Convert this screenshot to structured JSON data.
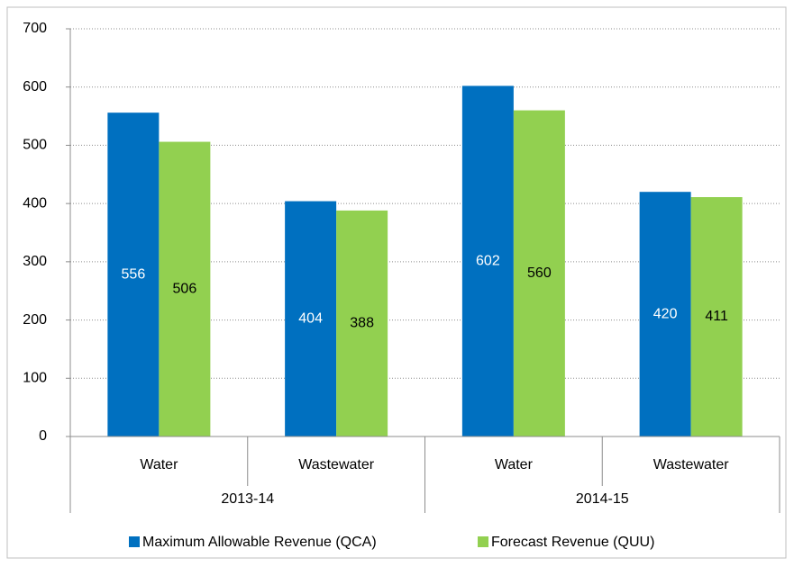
{
  "chart_data": {
    "type": "bar",
    "categories": [
      "Water",
      "Wastewater",
      "Water",
      "Wastewater"
    ],
    "groups": [
      "2013-14",
      "2014-15"
    ],
    "series": [
      {
        "name": "Maximum Allowable Revenue (QCA)",
        "color": "#0070c0",
        "label_color": "#ffffff",
        "values": [
          556,
          404,
          602,
          420
        ]
      },
      {
        "name": "Forecast Revenue (QUU)",
        "color": "#92d050",
        "label_color": "#000000",
        "values": [
          506,
          388,
          560,
          411
        ]
      }
    ],
    "ylim": [
      0,
      700
    ],
    "yticks": [
      0,
      100,
      200,
      300,
      400,
      500,
      600,
      700
    ],
    "grid": true,
    "legend": "bottom"
  }
}
